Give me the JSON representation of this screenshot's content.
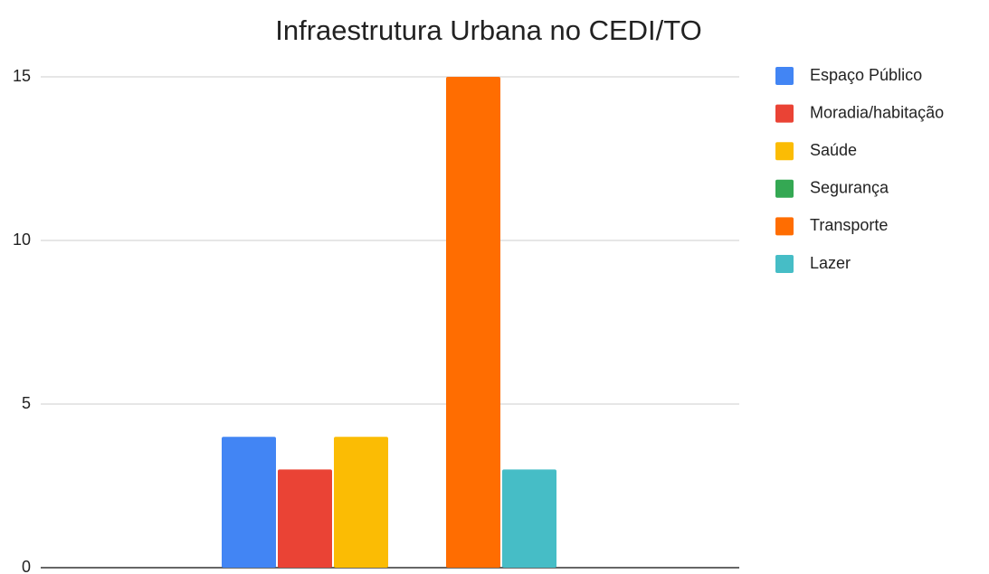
{
  "chart_data": {
    "type": "bar",
    "title": "Infraestrutura Urbana no CEDI/TO",
    "categories": [
      null
    ],
    "series": [
      {
        "name": "Espaço Público",
        "color": "#4285f4",
        "values": [
          4
        ]
      },
      {
        "name": "Moradia/habitação",
        "color": "#ea4335",
        "values": [
          3
        ]
      },
      {
        "name": "Saúde",
        "color": "#fbbc04",
        "values": [
          4
        ]
      },
      {
        "name": "Segurança",
        "color": "#34a853",
        "values": [
          0
        ]
      },
      {
        "name": "Transporte",
        "color": "#ff6d01",
        "values": [
          15
        ]
      },
      {
        "name": "Lazer",
        "color": "#46bdc6",
        "values": [
          3
        ]
      }
    ],
    "ylim": [
      0,
      15
    ],
    "yticks": [
      0,
      5,
      10,
      15
    ],
    "grid": true,
    "legend": "right"
  }
}
